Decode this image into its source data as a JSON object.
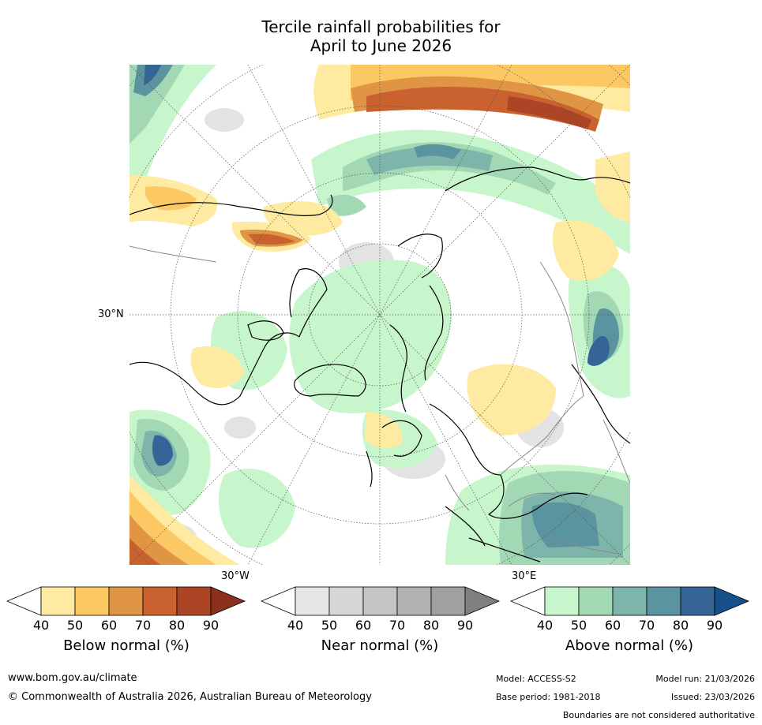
{
  "title_line1": "Tercile rainfall probabilities for",
  "title_line2": "April to June 2026",
  "map_labels": {
    "lat_30N": "30°N",
    "lon_30W": "30°W",
    "lon_30E": "30°E"
  },
  "colorbars": [
    {
      "title": "Below normal (%)",
      "ticks": [
        "40",
        "50",
        "60",
        "70",
        "80",
        "90"
      ],
      "colors": [
        "#ffffff",
        "#feeba1",
        "#fcc863",
        "#e09545",
        "#c9622f",
        "#ab4525",
        "#8d2f1d"
      ]
    },
    {
      "title": "Near normal (%)",
      "ticks": [
        "40",
        "50",
        "60",
        "70",
        "80",
        "90"
      ],
      "colors": [
        "#ffffff",
        "#e6e6e6",
        "#d6d6d6",
        "#c4c4c4",
        "#b2b2b2",
        "#a0a0a0",
        "#7f7f7f"
      ]
    },
    {
      "title": "Above normal (%)",
      "ticks": [
        "40",
        "50",
        "60",
        "70",
        "80",
        "90"
      ],
      "colors": [
        "#ffffff",
        "#c8f6cc",
        "#a3d8b5",
        "#7db5aa",
        "#5a949f",
        "#356596",
        "#164f89"
      ]
    }
  ],
  "footer": {
    "website": "www.bom.gov.au/climate",
    "copyright": "© Commonwealth of Australia 2026, Australian Bureau of Meteorology",
    "model": "Model: ACCESS-S2",
    "base_period": "Base period: 1981-2018",
    "model_run": "Model run: 21/03/2026",
    "issued": "Issued: 23/03/2026",
    "disclaimer": "Boundaries are not considered authoritative"
  }
}
